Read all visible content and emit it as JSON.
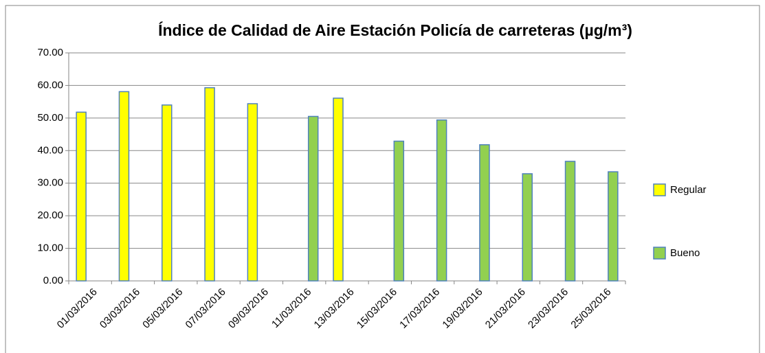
{
  "chart_data": {
    "type": "bar",
    "title": "Índice de Calidad de Aire Estación Policía de carreteras (µg/m³)",
    "categories": [
      "01/03/2016",
      "03/03/2016",
      "05/03/2016",
      "07/03/2016",
      "09/03/2016",
      "11/03/2016",
      "13/03/2016",
      "15/03/2016",
      "17/03/2016",
      "19/03/2016",
      "21/03/2016",
      "23/03/2016",
      "25/03/2016"
    ],
    "series": [
      {
        "name": "Regular",
        "color": "#ffff00",
        "values": [
          51.8,
          58.1,
          54.0,
          59.3,
          54.4,
          null,
          56.1,
          null,
          null,
          null,
          null,
          null,
          null
        ]
      },
      {
        "name": "Bueno",
        "color": "#92d050",
        "values": [
          null,
          null,
          null,
          null,
          null,
          50.5,
          null,
          42.9,
          49.4,
          41.8,
          32.9,
          36.7,
          33.5
        ]
      }
    ],
    "ylim": [
      0,
      70
    ],
    "yticks": [
      {
        "value": 0,
        "label": "0.00"
      },
      {
        "value": 10,
        "label": "10.00"
      },
      {
        "value": 20,
        "label": "20.00"
      },
      {
        "value": 30,
        "label": "30.00"
      },
      {
        "value": 40,
        "label": "40.00"
      },
      {
        "value": 50,
        "label": "50.00"
      },
      {
        "value": 60,
        "label": "60.00"
      },
      {
        "value": 70,
        "label": "70.00"
      }
    ],
    "grid": true,
    "legend": "right"
  }
}
